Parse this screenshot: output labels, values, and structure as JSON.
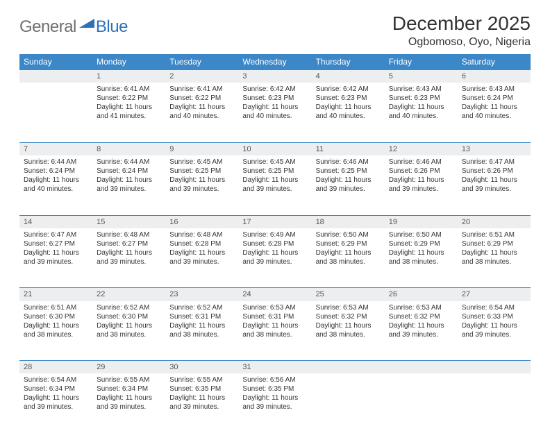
{
  "logo": {
    "general": "General",
    "blue": "Blue",
    "accent_color": "#2f71b8",
    "grey": "#6f6f6f"
  },
  "title": "December 2025",
  "location": "Ogbomoso, Oyo, Nigeria",
  "header_bg": "#3b87c8",
  "daynum_bg": "#eceeef",
  "border_color": "#3b87c8",
  "text_color": "#333333",
  "weekdays": [
    "Sunday",
    "Monday",
    "Tuesday",
    "Wednesday",
    "Thursday",
    "Friday",
    "Saturday"
  ],
  "weeks": [
    {
      "nums": [
        "",
        "1",
        "2",
        "3",
        "4",
        "5",
        "6"
      ],
      "cells": [
        null,
        {
          "sunrise": "Sunrise: 6:41 AM",
          "sunset": "Sunset: 6:22 PM",
          "daylight": "Daylight: 11 hours and 41 minutes."
        },
        {
          "sunrise": "Sunrise: 6:41 AM",
          "sunset": "Sunset: 6:22 PM",
          "daylight": "Daylight: 11 hours and 40 minutes."
        },
        {
          "sunrise": "Sunrise: 6:42 AM",
          "sunset": "Sunset: 6:23 PM",
          "daylight": "Daylight: 11 hours and 40 minutes."
        },
        {
          "sunrise": "Sunrise: 6:42 AM",
          "sunset": "Sunset: 6:23 PM",
          "daylight": "Daylight: 11 hours and 40 minutes."
        },
        {
          "sunrise": "Sunrise: 6:43 AM",
          "sunset": "Sunset: 6:23 PM",
          "daylight": "Daylight: 11 hours and 40 minutes."
        },
        {
          "sunrise": "Sunrise: 6:43 AM",
          "sunset": "Sunset: 6:24 PM",
          "daylight": "Daylight: 11 hours and 40 minutes."
        }
      ]
    },
    {
      "nums": [
        "7",
        "8",
        "9",
        "10",
        "11",
        "12",
        "13"
      ],
      "cells": [
        {
          "sunrise": "Sunrise: 6:44 AM",
          "sunset": "Sunset: 6:24 PM",
          "daylight": "Daylight: 11 hours and 40 minutes."
        },
        {
          "sunrise": "Sunrise: 6:44 AM",
          "sunset": "Sunset: 6:24 PM",
          "daylight": "Daylight: 11 hours and 39 minutes."
        },
        {
          "sunrise": "Sunrise: 6:45 AM",
          "sunset": "Sunset: 6:25 PM",
          "daylight": "Daylight: 11 hours and 39 minutes."
        },
        {
          "sunrise": "Sunrise: 6:45 AM",
          "sunset": "Sunset: 6:25 PM",
          "daylight": "Daylight: 11 hours and 39 minutes."
        },
        {
          "sunrise": "Sunrise: 6:46 AM",
          "sunset": "Sunset: 6:25 PM",
          "daylight": "Daylight: 11 hours and 39 minutes."
        },
        {
          "sunrise": "Sunrise: 6:46 AM",
          "sunset": "Sunset: 6:26 PM",
          "daylight": "Daylight: 11 hours and 39 minutes."
        },
        {
          "sunrise": "Sunrise: 6:47 AM",
          "sunset": "Sunset: 6:26 PM",
          "daylight": "Daylight: 11 hours and 39 minutes."
        }
      ]
    },
    {
      "nums": [
        "14",
        "15",
        "16",
        "17",
        "18",
        "19",
        "20"
      ],
      "cells": [
        {
          "sunrise": "Sunrise: 6:47 AM",
          "sunset": "Sunset: 6:27 PM",
          "daylight": "Daylight: 11 hours and 39 minutes."
        },
        {
          "sunrise": "Sunrise: 6:48 AM",
          "sunset": "Sunset: 6:27 PM",
          "daylight": "Daylight: 11 hours and 39 minutes."
        },
        {
          "sunrise": "Sunrise: 6:48 AM",
          "sunset": "Sunset: 6:28 PM",
          "daylight": "Daylight: 11 hours and 39 minutes."
        },
        {
          "sunrise": "Sunrise: 6:49 AM",
          "sunset": "Sunset: 6:28 PM",
          "daylight": "Daylight: 11 hours and 39 minutes."
        },
        {
          "sunrise": "Sunrise: 6:50 AM",
          "sunset": "Sunset: 6:29 PM",
          "daylight": "Daylight: 11 hours and 38 minutes."
        },
        {
          "sunrise": "Sunrise: 6:50 AM",
          "sunset": "Sunset: 6:29 PM",
          "daylight": "Daylight: 11 hours and 38 minutes."
        },
        {
          "sunrise": "Sunrise: 6:51 AM",
          "sunset": "Sunset: 6:29 PM",
          "daylight": "Daylight: 11 hours and 38 minutes."
        }
      ]
    },
    {
      "nums": [
        "21",
        "22",
        "23",
        "24",
        "25",
        "26",
        "27"
      ],
      "cells": [
        {
          "sunrise": "Sunrise: 6:51 AM",
          "sunset": "Sunset: 6:30 PM",
          "daylight": "Daylight: 11 hours and 38 minutes."
        },
        {
          "sunrise": "Sunrise: 6:52 AM",
          "sunset": "Sunset: 6:30 PM",
          "daylight": "Daylight: 11 hours and 38 minutes."
        },
        {
          "sunrise": "Sunrise: 6:52 AM",
          "sunset": "Sunset: 6:31 PM",
          "daylight": "Daylight: 11 hours and 38 minutes."
        },
        {
          "sunrise": "Sunrise: 6:53 AM",
          "sunset": "Sunset: 6:31 PM",
          "daylight": "Daylight: 11 hours and 38 minutes."
        },
        {
          "sunrise": "Sunrise: 6:53 AM",
          "sunset": "Sunset: 6:32 PM",
          "daylight": "Daylight: 11 hours and 38 minutes."
        },
        {
          "sunrise": "Sunrise: 6:53 AM",
          "sunset": "Sunset: 6:32 PM",
          "daylight": "Daylight: 11 hours and 39 minutes."
        },
        {
          "sunrise": "Sunrise: 6:54 AM",
          "sunset": "Sunset: 6:33 PM",
          "daylight": "Daylight: 11 hours and 39 minutes."
        }
      ]
    },
    {
      "nums": [
        "28",
        "29",
        "30",
        "31",
        "",
        "",
        ""
      ],
      "cells": [
        {
          "sunrise": "Sunrise: 6:54 AM",
          "sunset": "Sunset: 6:34 PM",
          "daylight": "Daylight: 11 hours and 39 minutes."
        },
        {
          "sunrise": "Sunrise: 6:55 AM",
          "sunset": "Sunset: 6:34 PM",
          "daylight": "Daylight: 11 hours and 39 minutes."
        },
        {
          "sunrise": "Sunrise: 6:55 AM",
          "sunset": "Sunset: 6:35 PM",
          "daylight": "Daylight: 11 hours and 39 minutes."
        },
        {
          "sunrise": "Sunrise: 6:56 AM",
          "sunset": "Sunset: 6:35 PM",
          "daylight": "Daylight: 11 hours and 39 minutes."
        },
        null,
        null,
        null
      ]
    }
  ]
}
